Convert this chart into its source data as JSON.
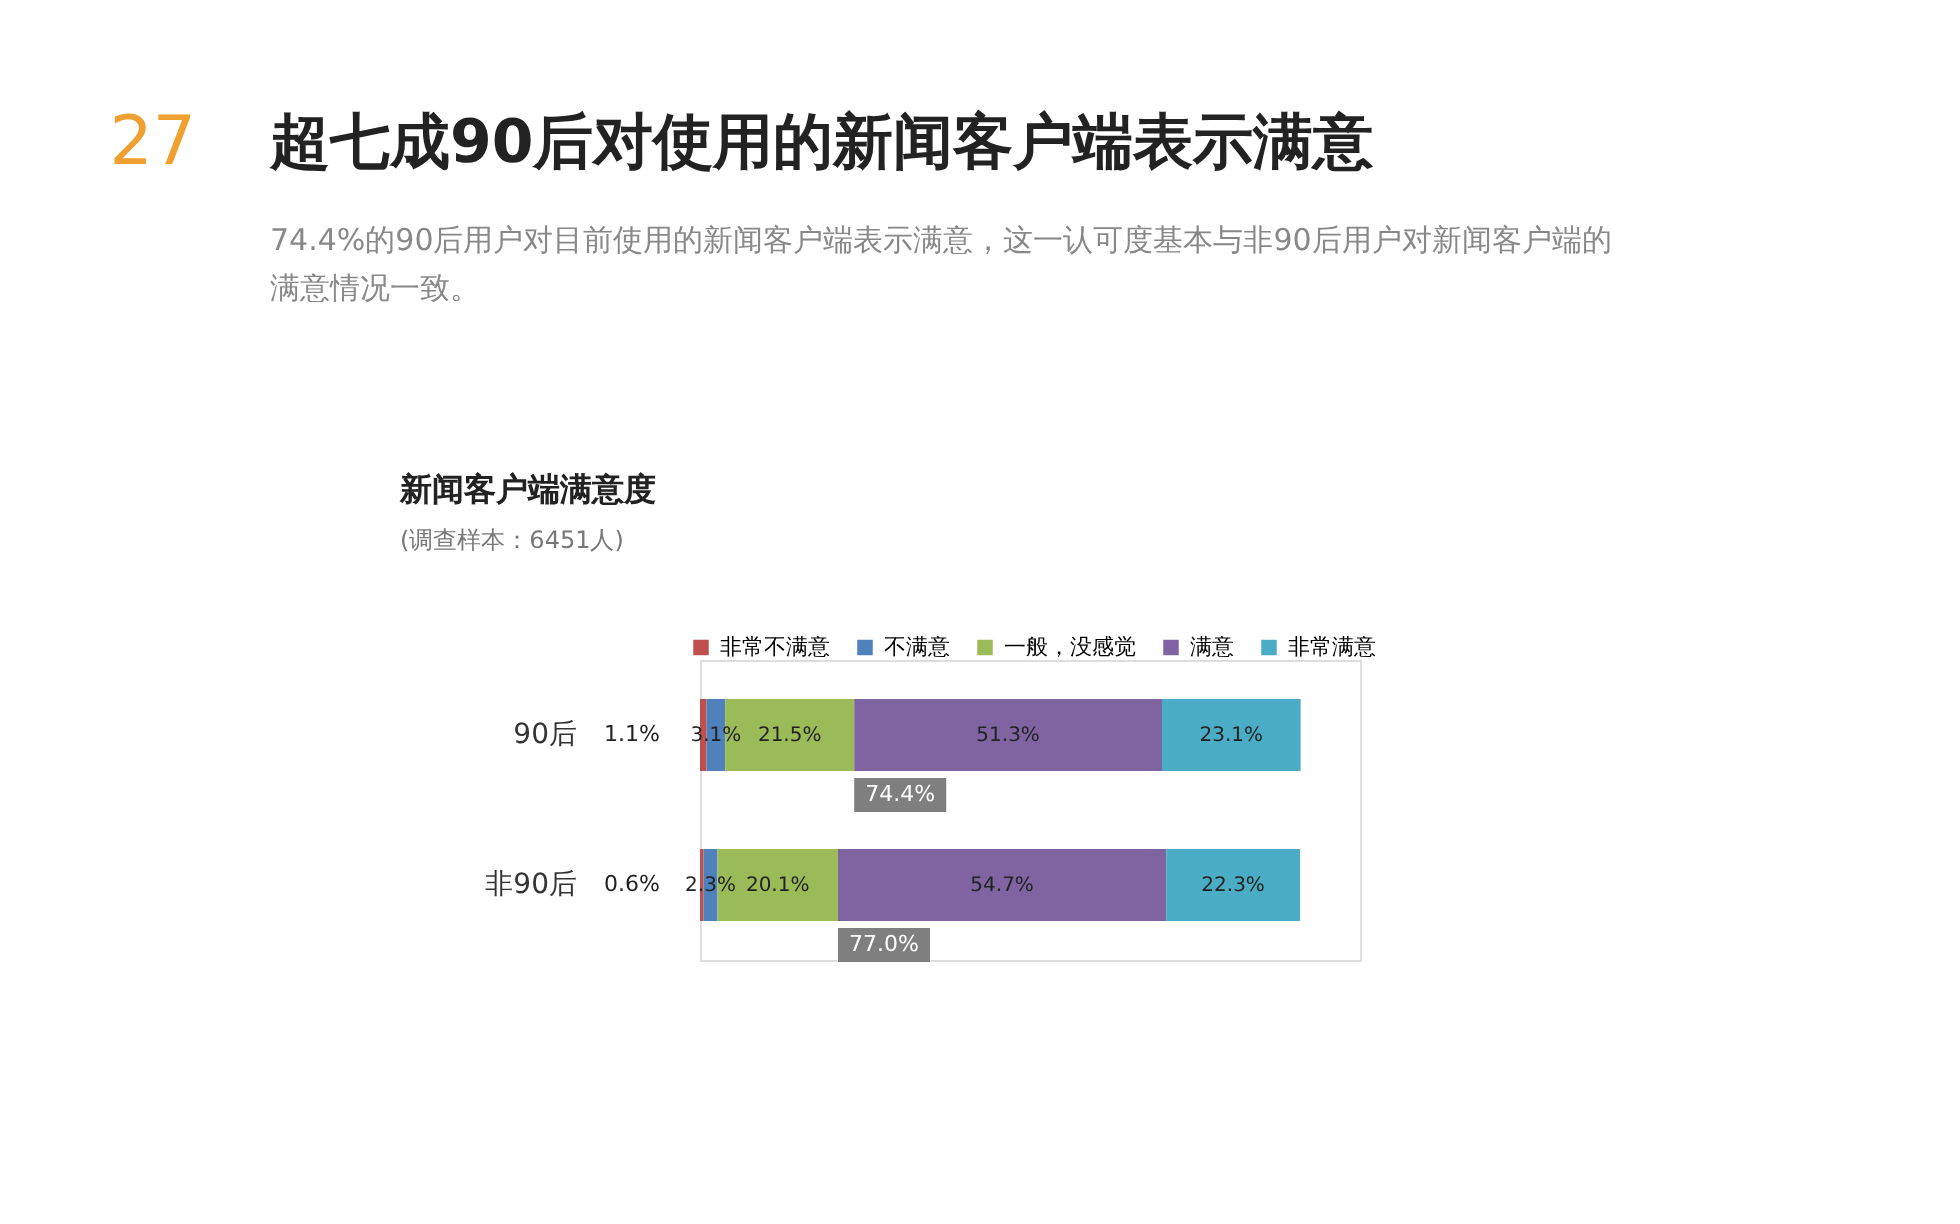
{
  "chart_data": {
    "type": "bar",
    "orientation": "horizontal",
    "stacked": true,
    "legend": "top",
    "title": "超七成90后对使用的新闻客户端表示满意",
    "subtitle": "74.4%的90后用户对目前使用的新闻客户端表示满意，这一认可度基本与非90后用户对新闻客户端的满意情况一致。",
    "categories": [
      "90后",
      "非90后"
    ],
    "series": [
      {
        "name": "非常不满意",
        "color": "#c0504d",
        "values": [
          1.1,
          0.6
        ],
        "value_labels": [
          "1.1%",
          "0.6%"
        ]
      },
      {
        "name": "不满意",
        "color": "#4f81bd",
        "values": [
          3.1,
          2.3
        ],
        "value_labels": [
          "3.1%",
          "2.3%"
        ]
      },
      {
        "name": "一般，没感觉",
        "color": "#9bbb59",
        "values": [
          21.5,
          20.1
        ],
        "value_labels": [
          "21.5%",
          "20.1%"
        ]
      },
      {
        "name": "满意",
        "color": "#8064a2",
        "values": [
          51.3,
          54.7
        ],
        "value_labels": [
          "51.3%",
          "54.7%"
        ]
      },
      {
        "name": "非常满意",
        "color": "#4bacc6",
        "values": [
          23.1,
          22.3
        ],
        "value_labels": [
          "23.1%",
          "22.3%"
        ]
      }
    ],
    "annotations": [
      "27",
      "新闻客户端满意度",
      "(调查样本：6451人)",
      {
        "text": "74.4%",
        "x": 25.7,
        "y": "90后"
      },
      {
        "text": "77.0%",
        "x": 23.0,
        "y": "非90后"
      }
    ]
  }
}
